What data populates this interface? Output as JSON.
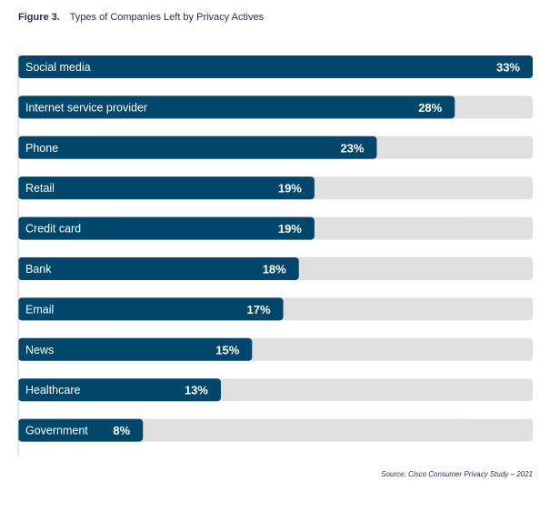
{
  "figure": {
    "number": "Figure 3.",
    "title": "Types of Companies Left by Privacy Actives"
  },
  "chart_data": {
    "type": "bar",
    "orientation": "horizontal",
    "title": "Types of Companies Left by Privacy Actives",
    "categories": [
      "Social media",
      "Internet service provider",
      "Phone",
      "Retail",
      "Credit card",
      "Bank",
      "Email",
      "News",
      "Healthcare",
      "Government"
    ],
    "values": [
      33,
      28,
      23,
      19,
      19,
      18,
      17,
      15,
      13,
      8
    ],
    "value_labels": [
      "33%",
      "28%",
      "23%",
      "19%",
      "19%",
      "18%",
      "17%",
      "15%",
      "13%",
      "8%"
    ],
    "xlim": [
      0,
      33
    ],
    "unit": "%",
    "colors": {
      "bar": "#00476b",
      "track": "#e0e0e0",
      "axis": "#c8c8c8"
    }
  },
  "source": "Source: Cisco Consumer Privacy Study – 2021"
}
